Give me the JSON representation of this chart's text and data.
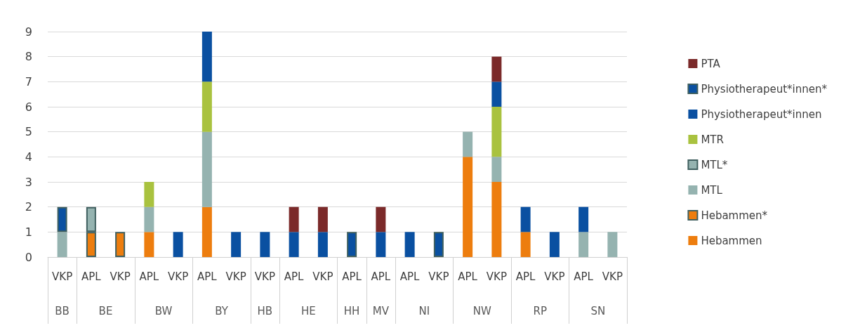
{
  "chart_data": {
    "type": "bar",
    "stacked": true,
    "categories": [
      "VKP",
      "APL",
      "VKP",
      "APL",
      "VKP",
      "APL",
      "VKP",
      "VKP",
      "APL",
      "VKP",
      "APL",
      "APL",
      "APL",
      "VKP",
      "APL",
      "VKP",
      "APL",
      "VKP",
      "APL",
      "VKP"
    ],
    "annotations": [
      "BB",
      "BE",
      "BW",
      "BY",
      "HB",
      "HE",
      "HH",
      "MV",
      "NI",
      "NW",
      "RP",
      "SN"
    ],
    "series": [
      {
        "name": "Hebammen",
        "color": "#ed7d0e",
        "values": [
          0,
          0,
          0,
          1,
          0,
          2,
          0,
          0,
          0,
          0,
          0,
          0,
          0,
          0,
          4,
          3,
          1,
          0,
          0,
          0
        ]
      },
      {
        "name": "Hebammen*",
        "color": "#ed7d0e",
        "values": [
          0,
          1,
          1,
          0,
          0,
          0,
          0,
          0,
          0,
          0,
          0,
          0,
          0,
          0,
          0,
          0,
          0,
          0,
          0,
          0
        ]
      },
      {
        "name": "MTL",
        "color": "#95b3b0",
        "values": [
          1,
          0,
          0,
          1,
          0,
          3,
          0,
          0,
          0,
          0,
          0,
          0,
          0,
          0,
          1,
          1,
          0,
          0,
          1,
          1
        ]
      },
      {
        "name": "MTL*",
        "color": "#95b3b0",
        "values": [
          0,
          1,
          0,
          0,
          0,
          0,
          0,
          0,
          0,
          0,
          0,
          0,
          0,
          0,
          0,
          0,
          0,
          0,
          0,
          0
        ]
      },
      {
        "name": "MTR",
        "color": "#a9c23f",
        "values": [
          0,
          0,
          0,
          1,
          0,
          2,
          0,
          0,
          0,
          0,
          0,
          0,
          0,
          0,
          0,
          2,
          0,
          0,
          0,
          0
        ]
      },
      {
        "name": "Physiotherapeut*innen",
        "color": "#0a50a1",
        "values": [
          0,
          0,
          0,
          0,
          1,
          2,
          1,
          1,
          1,
          1,
          0,
          1,
          1,
          0,
          0,
          1,
          1,
          1,
          1,
          0
        ]
      },
      {
        "name": "Physiotherapeut*innen*",
        "color": "#0a50a1",
        "values": [
          1,
          0,
          0,
          0,
          0,
          0,
          0,
          0,
          0,
          0,
          1,
          0,
          0,
          1,
          0,
          0,
          0,
          0,
          0,
          0
        ]
      },
      {
        "name": "PTA",
        "color": "#7b2a2a",
        "values": [
          0,
          0,
          0,
          0,
          0,
          0,
          0,
          0,
          1,
          1,
          0,
          1,
          0,
          0,
          0,
          1,
          0,
          0,
          0,
          0
        ]
      }
    ],
    "ylim": [
      0,
      9
    ],
    "yticks": [
      0,
      1,
      2,
      3,
      4,
      5,
      6,
      7,
      8,
      9
    ],
    "grid": "y",
    "legend": "right"
  }
}
